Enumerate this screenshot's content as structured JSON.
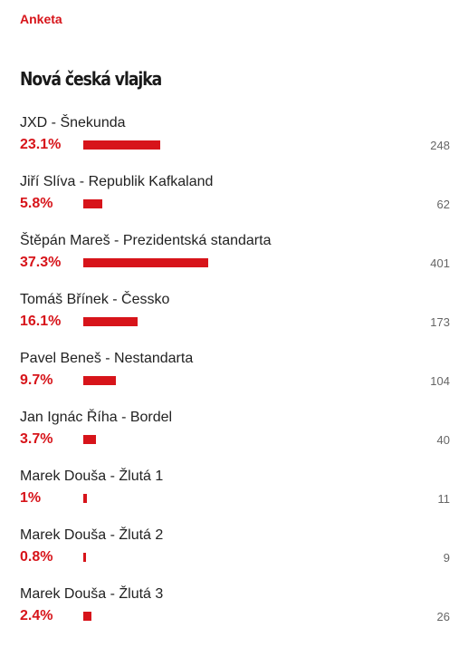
{
  "poll": {
    "kicker": "Anketa",
    "title": "Nová česká vlajka",
    "options": [
      {
        "label": "JXD - Šnekunda",
        "percent_text": "23.1%",
        "percent": 23.1,
        "votes": "248"
      },
      {
        "label": "Jiří Slíva - Republik Kafkaland",
        "percent_text": "5.8%",
        "percent": 5.8,
        "votes": "62"
      },
      {
        "label": "Štěpán Mareš - Prezidentská standarta",
        "percent_text": "37.3%",
        "percent": 37.3,
        "votes": "401"
      },
      {
        "label": "Tomáš Břínek - Čessko",
        "percent_text": "16.1%",
        "percent": 16.1,
        "votes": "173"
      },
      {
        "label": "Pavel Beneš - Nestandarta",
        "percent_text": "9.7%",
        "percent": 9.7,
        "votes": "104"
      },
      {
        "label": "Jan Ignác Říha - Bordel",
        "percent_text": "3.7%",
        "percent": 3.7,
        "votes": "40"
      },
      {
        "label": "Marek Douša - Žlutá 1",
        "percent_text": "1%",
        "percent": 1.0,
        "votes": "11"
      },
      {
        "label": "Marek Douša - Žlutá 2",
        "percent_text": "0.8%",
        "percent": 0.8,
        "votes": "9"
      },
      {
        "label": "Marek Douša - Žlutá 3",
        "percent_text": "2.4%",
        "percent": 2.4,
        "votes": "26"
      }
    ]
  },
  "colors": {
    "accent": "#d7141a",
    "text": "#222222",
    "muted": "#666666"
  }
}
